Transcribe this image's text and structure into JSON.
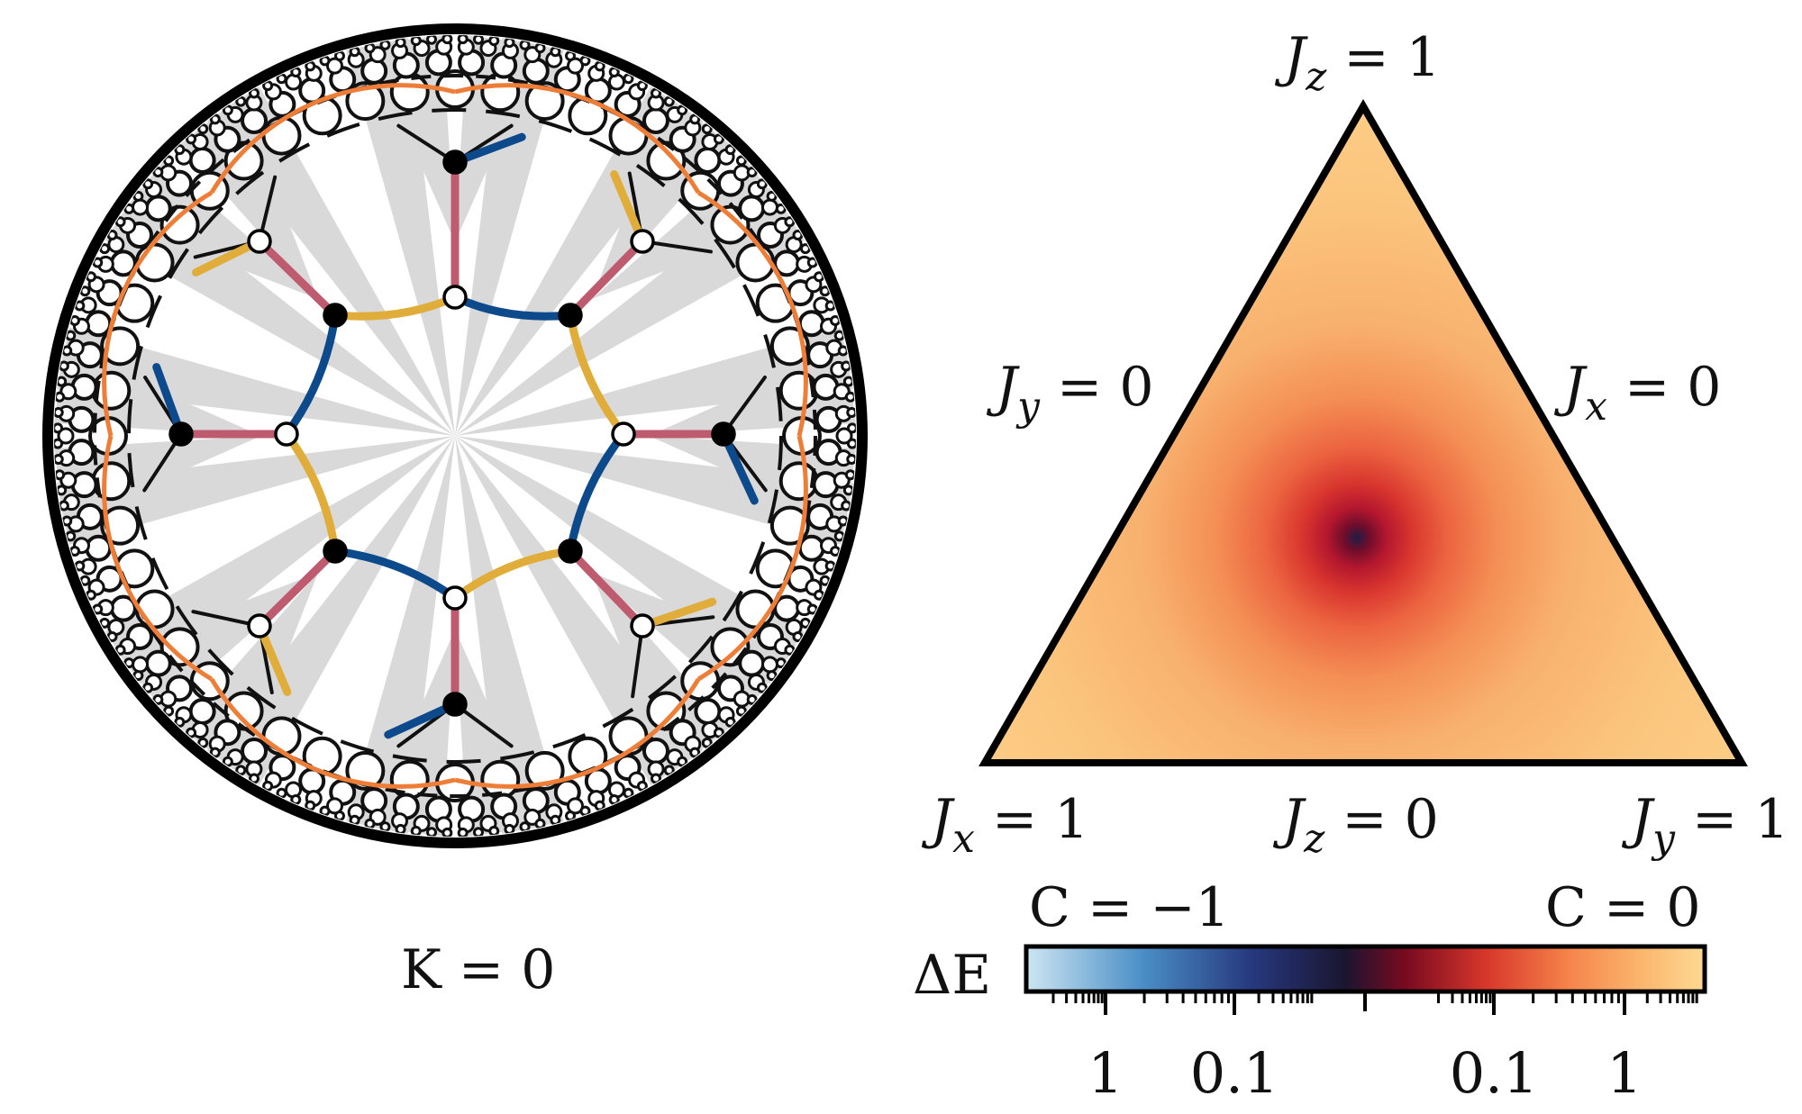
{
  "left_panel": {
    "caption": "K = 0",
    "colors": {
      "boundary": "#000000",
      "shade": "#d9d9d9",
      "x_bond": "#bf5b6e",
      "y_bond": "#e0ad3a",
      "z_bond": "#0d4a8c",
      "plaquette": "#ee7d37",
      "outer_lattice": "#111111"
    }
  },
  "right_panel": {
    "labels": {
      "top": "J_z = 1",
      "left_edge": "J_y = 0",
      "right_edge": "J_x = 0",
      "bottom_left": "J_x = 1",
      "bottom_mid": "J_z = 0",
      "bottom_right": "J_y = 1"
    },
    "colorbar": {
      "label": "ΔE",
      "left_title": "C = −1",
      "right_title": "C = 0",
      "tick_labels": [
        "1",
        "0.1",
        "0.1",
        "1"
      ],
      "stops": [
        "#cde6f3",
        "#4b8fc6",
        "#27397f",
        "#1a1530",
        "#7a0a20",
        "#d8382b",
        "#f5844b",
        "#fbb36b",
        "#fdd992"
      ]
    }
  }
}
